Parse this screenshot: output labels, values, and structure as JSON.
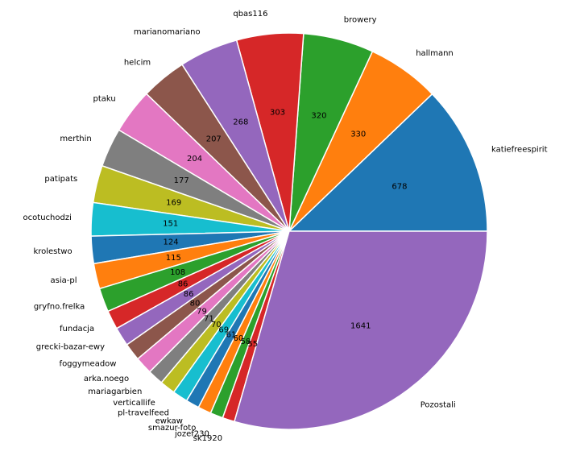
{
  "chart_data": {
    "type": "pie",
    "title": "",
    "slices": [
      {
        "label": "katiefreespirit",
        "value": 678,
        "color": "#1f77b4"
      },
      {
        "label": "hallmann",
        "value": 330,
        "color": "#ff7f0e"
      },
      {
        "label": "browery",
        "value": 320,
        "color": "#2ca02c"
      },
      {
        "label": "qbas116",
        "value": 303,
        "color": "#d62728"
      },
      {
        "label": "marianomariano",
        "value": 268,
        "color": "#9467bd"
      },
      {
        "label": "helcim",
        "value": 207,
        "color": "#8c564b"
      },
      {
        "label": "ptaku",
        "value": 204,
        "color": "#e377c2"
      },
      {
        "label": "merthin",
        "value": 177,
        "color": "#7f7f7f"
      },
      {
        "label": "patipats",
        "value": 169,
        "color": "#bcbd22"
      },
      {
        "label": "ocotuchodzi",
        "value": 151,
        "color": "#17becf"
      },
      {
        "label": "krolestwo",
        "value": 124,
        "color": "#1f77b4"
      },
      {
        "label": "asia-pl",
        "value": 115,
        "color": "#ff7f0e"
      },
      {
        "label": "gryfno.frelka",
        "value": 108,
        "color": "#2ca02c"
      },
      {
        "label": "fundacja",
        "value": 86,
        "color": "#d62728"
      },
      {
        "label": "grecki-bazar-ewy",
        "value": 86,
        "color": "#9467bd"
      },
      {
        "label": "foggymeadow",
        "value": 80,
        "color": "#8c564b"
      },
      {
        "label": "arka.noego",
        "value": 79,
        "color": "#e377c2"
      },
      {
        "label": "mariagarbien",
        "value": 71,
        "color": "#7f7f7f"
      },
      {
        "label": "verticallife",
        "value": 70,
        "color": "#bcbd22"
      },
      {
        "label": "pl-travelfeed",
        "value": 69,
        "color": "#17becf"
      },
      {
        "label": "ewkaw",
        "value": 61,
        "color": "#1f77b4"
      },
      {
        "label": "smazur-foto",
        "value": 60,
        "color": "#ff7f0e"
      },
      {
        "label": "jozef230",
        "value": 58,
        "color": "#2ca02c"
      },
      {
        "label": "sk1920",
        "value": 55,
        "color": "#d62728"
      },
      {
        "label": "Pozostali",
        "value": 1641,
        "color": "#9467bd"
      }
    ],
    "start_angle_deg": 0,
    "direction": "counterclockwise",
    "show_values": true,
    "legend": "none",
    "edge_color": "#ffffff"
  }
}
